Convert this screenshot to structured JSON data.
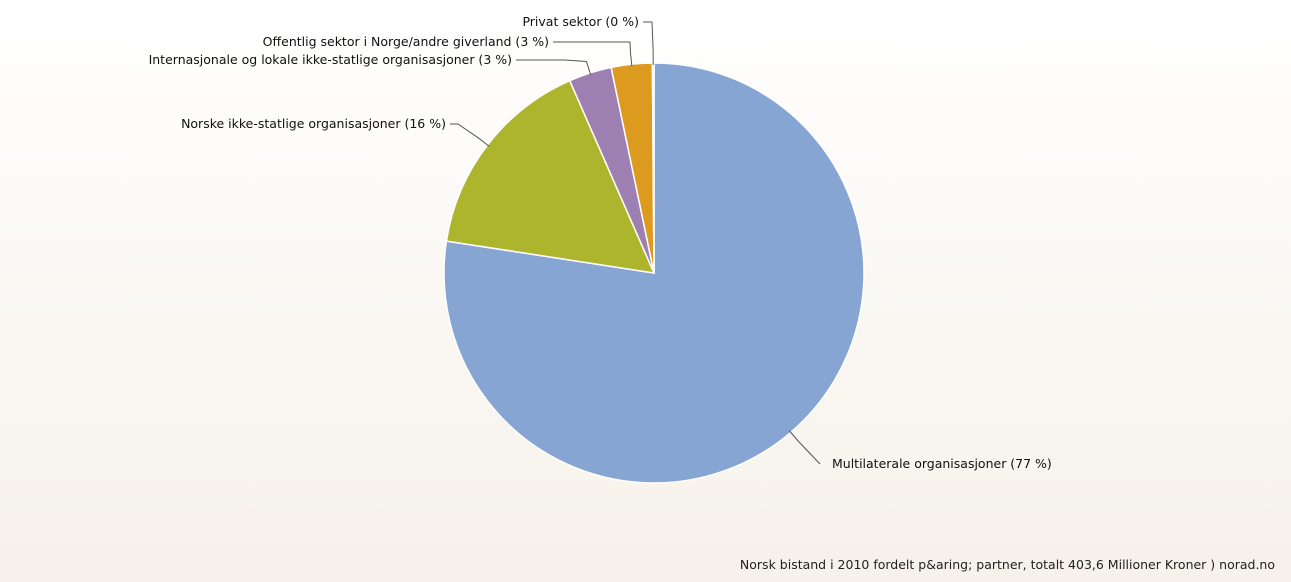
{
  "chart_data": {
    "type": "pie",
    "slices": [
      {
        "label": "Multilaterale organisasjoner (77 %)",
        "value": 77.43,
        "color": "#87a5d3"
      },
      {
        "label": "Norske ikke-statlige organisasjoner (16 %)",
        "value": 16.0,
        "color": "#adb52d"
      },
      {
        "label": "Internasjonale og lokale ikke-statlige organisasjoner (3 %)",
        "value": 3.3,
        "color": "#9e7fb1"
      },
      {
        "label": "Offentlig sektor i Norge/andre giverland (3 %)",
        "value": 3.15,
        "color": "#dc9b1f"
      },
      {
        "label": "Privat sektor (0 %)",
        "value": 0.12,
        "color": "#87a5d3"
      }
    ],
    "start_angle_deg": 0,
    "direction": "clockwise"
  },
  "footer": {
    "credit": "Norsk bistand i 2010 fordelt p&aring; partner, totalt 403,6 Millioner Kroner ) norad.no"
  }
}
